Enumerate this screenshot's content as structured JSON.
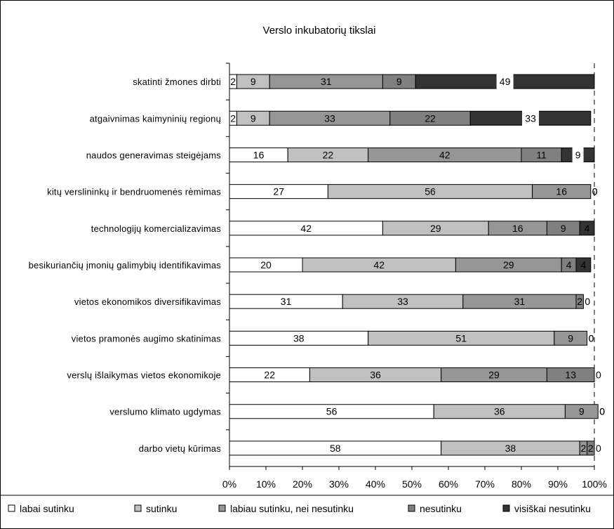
{
  "chart_data": {
    "type": "bar",
    "orientation": "horizontal",
    "stacked": "percent",
    "title": "Verslo inkubatorių tikslai",
    "categories": [
      "skatinti žmones dirbti",
      "atgaivnimas kaimyninių regionų",
      "naudos generavimas steigėjams",
      "kitų verslininkų ir bendruomenės rėmimas",
      "technologijų komercializavimas",
      "besikuriančių įmonių galimybių identifikavimas",
      "vietos ekonomikos diversifikavimas",
      "vietos pramonės augimo skatinimas",
      "verslų išlaikymas vietos ekonomikoje",
      "verslumo klimato ugdymas",
      "darbo vietų kūrimas"
    ],
    "series": [
      {
        "name": "labai sutinku",
        "color": "#ffffff",
        "values": [
          2,
          2,
          16,
          27,
          42,
          20,
          31,
          38,
          22,
          56,
          58
        ]
      },
      {
        "name": "sutinku",
        "color": "#c0c0c0",
        "values": [
          9,
          9,
          22,
          56,
          29,
          42,
          33,
          51,
          36,
          36,
          38
        ]
      },
      {
        "name": "labiau sutinku, nei nesutinku",
        "color": "#969696",
        "values": [
          31,
          33,
          42,
          16,
          16,
          29,
          31,
          9,
          29,
          9,
          2
        ]
      },
      {
        "name": "nesutinku",
        "color": "#808080",
        "values": [
          9,
          22,
          11,
          0,
          9,
          4,
          2,
          0,
          13,
          0,
          2
        ]
      },
      {
        "name": "visiškai nesutinku",
        "color": "#333333",
        "values": [
          49,
          33,
          9,
          0,
          4,
          4,
          0,
          0,
          0,
          0,
          0
        ]
      }
    ],
    "xlim": [
      0,
      100
    ],
    "xticks": [
      "0%",
      "10%",
      "20%",
      "30%",
      "40%",
      "50%",
      "60%",
      "70%",
      "80%",
      "90%",
      "100%"
    ],
    "grid": false,
    "legend_position": "bottom"
  }
}
